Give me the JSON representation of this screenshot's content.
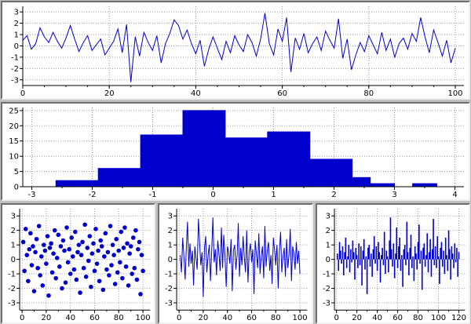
{
  "window": {
    "background": "#c0c0c0",
    "panel_background": "#ffffff",
    "accent": "#0000cc",
    "grid_color": "#9a9a9a"
  },
  "chart_data": [
    {
      "id": "timeseries",
      "type": "line",
      "title": "",
      "xlabel": "",
      "ylabel": "",
      "color": "#0000cc",
      "grid_color": "#9a9a9a",
      "grid": true,
      "xlim": [
        0,
        102
      ],
      "ylim": [
        -3.5,
        3.5
      ],
      "xticks": [
        0,
        20,
        40,
        60,
        80,
        100
      ],
      "yticks": [
        3,
        2,
        1,
        0,
        -1,
        -2,
        -3
      ],
      "xminor": 5,
      "margins": {
        "l": 26,
        "r": 6,
        "t": 5,
        "b": 16
      },
      "x_start": 0,
      "x_step": 1,
      "y": [
        0.5,
        0.9,
        -0.3,
        0.2,
        1.6,
        0.8,
        0.3,
        1.2,
        0.4,
        -0.2,
        0.7,
        1.8,
        0.6,
        -0.5,
        0.3,
        0.9,
        -0.4,
        0.1,
        0.6,
        -0.8,
        -0.2,
        0.4,
        1.5,
        -0.6,
        1.9,
        -3.2,
        0.8,
        -0.9,
        1.2,
        0.3,
        -0.4,
        0.9,
        -1.5,
        0.2,
        1.1,
        2.3,
        1.8,
        0.6,
        1.4,
        0.2,
        -0.7,
        0.5,
        -1.8,
        -0.3,
        0.8,
        -0.2,
        -1.2,
        0.4,
        -0.6,
        0.9,
        0.1,
        -0.5,
        1.0,
        0.3,
        -0.9,
        0.6,
        2.9,
        0.2,
        -0.8,
        1.5,
        0.4,
        2.5,
        -2.3,
        0.7,
        -0.3,
        1.1,
        -0.6,
        0.2,
        0.8,
        -0.4,
        1.3,
        0.5,
        -0.2,
        2.4,
        -1.1,
        0.6,
        -2.1,
        -0.8,
        0.3,
        -0.5,
        0.9,
        0.1,
        -0.7,
        1.2,
        -0.4,
        0.6,
        -1.0,
        0.2,
        0.7,
        -0.3,
        1.1,
        0.4,
        2.5,
        0.8,
        -0.6,
        1.4,
        0.3,
        -0.9,
        0.5,
        -1.5,
        -0.2
      ]
    },
    {
      "id": "histogram",
      "type": "histogram",
      "title": "",
      "xlabel": "",
      "ylabel": "",
      "color": "#0000cc",
      "grid_color": "#9a9a9a",
      "grid": true,
      "xlim": [
        -3.15,
        4.15
      ],
      "ylim": [
        0,
        26
      ],
      "xticks": [
        -3,
        -2,
        -1,
        0,
        1,
        2,
        3,
        4
      ],
      "yticks": [
        0,
        5,
        10,
        15,
        20,
        25
      ],
      "xminor": 0.5,
      "margins": {
        "l": 26,
        "r": 6,
        "t": 5,
        "b": 16
      },
      "bars": [
        {
          "x0": -2.6,
          "x1": -1.9,
          "h": 2
        },
        {
          "x0": -1.9,
          "x1": -1.2,
          "h": 6
        },
        {
          "x0": -1.2,
          "x1": -0.5,
          "h": 17
        },
        {
          "x0": -0.5,
          "x1": 0.2,
          "h": 25
        },
        {
          "x0": 0.2,
          "x1": 0.9,
          "h": 16
        },
        {
          "x0": 0.9,
          "x1": 1.6,
          "h": 18
        },
        {
          "x0": 1.6,
          "x1": 2.3,
          "h": 9
        },
        {
          "x0": 2.3,
          "x1": 2.6,
          "h": 3
        },
        {
          "x0": 2.6,
          "x1": 3.0,
          "h": 1
        },
        {
          "x0": 3.3,
          "x1": 3.7,
          "h": 1
        }
      ]
    },
    {
      "id": "scatter",
      "type": "scatter",
      "title": "",
      "xlabel": "",
      "ylabel": "",
      "color": "#0000cc",
      "grid_color": "#9a9a9a",
      "grid": true,
      "xlim": [
        -2,
        106
      ],
      "ylim": [
        -3.5,
        3.5
      ],
      "xticks": [
        0,
        20,
        40,
        60,
        80,
        100
      ],
      "yticks": [
        3,
        2,
        1,
        0,
        -1,
        -2,
        -3
      ],
      "xminor": 10,
      "margins": {
        "l": 22,
        "r": 5,
        "t": 5,
        "b": 16
      },
      "x_start": 1,
      "x_step": 1,
      "y": [
        1.2,
        -0.8,
        2.1,
        0.3,
        -1.5,
        0.7,
        1.8,
        -0.4,
        0.9,
        -2.2,
        0.5,
        1.4,
        -0.6,
        2.3,
        -1.1,
        0.2,
        -1.8,
        1.0,
        0.6,
        -0.3,
        1.6,
        -2.5,
        0.8,
        1.1,
        -0.9,
        0.4,
        2.0,
        -1.3,
        0.1,
        1.7,
        -0.5,
        0.9,
        -2.0,
        1.3,
        0.6,
        -1.6,
        2.2,
        -0.2,
        0.7,
        -1.0,
        1.5,
        0.2,
        -0.7,
        1.9,
        -1.4,
        0.5,
        1.0,
        -2.3,
        0.3,
        1.2,
        -0.6,
        2.4,
        -1.2,
        0.8,
        -0.1,
        1.6,
        -1.9,
        0.4,
        1.1,
        -0.8,
        2.1,
        -0.3,
        0.6,
        -1.5,
        1.3,
        0.9,
        -2.1,
        0.2,
        1.8,
        -0.7,
        0.5,
        -1.1,
        2.3,
        -0.4,
        1.0,
        0.3,
        -1.7,
        1.4,
        -0.9,
        0.6,
        -0.2,
        1.9,
        -1.3,
        0.8,
        2.2,
        -0.5,
        1.1,
        -1.8,
        0.4,
        0.9,
        -1.0,
        1.5,
        -0.6,
        2.0,
        -1.4,
        0.7,
        1.2,
        -2.4,
        0.3,
        -0.8
      ]
    },
    {
      "id": "noise-line",
      "type": "line",
      "title": "",
      "xlabel": "",
      "ylabel": "",
      "color": "#0000cc",
      "grid_color": "#9a9a9a",
      "grid": true,
      "xlim": [
        -2,
        106
      ],
      "ylim": [
        -3.5,
        3.5
      ],
      "xticks": [
        0,
        20,
        40,
        60,
        80,
        100
      ],
      "yticks": [
        3,
        2,
        1,
        0,
        -1,
        -2,
        -3
      ],
      "xminor": 10,
      "margins": {
        "l": 22,
        "r": 5,
        "t": 5,
        "b": 16
      },
      "x_start": 1,
      "x_step": 1,
      "y": [
        0.3,
        -0.9,
        1.5,
        0.2,
        -1.4,
        0.8,
        2.6,
        -0.5,
        1.1,
        -0.3,
        0.6,
        -1.8,
        0.9,
        0.1,
        -0.7,
        2.8,
        1.2,
        -0.4,
        0.5,
        -2.6,
        0.8,
        1.6,
        -0.9,
        0.3,
        1.0,
        -1.5,
        0.6,
        2.9,
        -0.2,
        0.7,
        -1.1,
        1.3,
        0.4,
        -0.8,
        2.2,
        -0.6,
        1.7,
        0.2,
        -1.9,
        0.9,
        0.5,
        -0.3,
        1.4,
        -2.2,
        0.6,
        1.0,
        -0.7,
        0.3,
        2.5,
        -1.2,
        0.8,
        -0.4,
        1.6,
        0.1,
        -0.9,
        2.0,
        -1.6,
        0.5,
        1.1,
        -0.2,
        0.7,
        -2.4,
        1.3,
        0.4,
        -0.6,
        1.8,
        -1.0,
        0.2,
        0.9,
        -1.3,
        2.3,
        -0.5,
        0.6,
        1.2,
        -0.8,
        0.3,
        -1.7,
        1.5,
        0.7,
        -0.4,
        1.0,
        -2.0,
        0.5,
        1.9,
        -0.9,
        0.2,
        0.8,
        -1.2,
        1.4,
        -0.6,
        0.3,
        2.1,
        -1.5,
        0.9,
        0.4,
        -0.7,
        1.2,
        -0.3,
        0.6,
        -1.0
      ]
    },
    {
      "id": "stem",
      "type": "stem",
      "title": "",
      "xlabel": "",
      "ylabel": "",
      "color": "#0000cc",
      "grid_color": "#9a9a9a",
      "grid": true,
      "xlim": [
        -2,
        126
      ],
      "ylim": [
        -3.5,
        3.5
      ],
      "xticks": [
        0,
        20,
        40,
        60,
        80,
        100,
        120
      ],
      "yticks": [
        3,
        2,
        1,
        0,
        -1,
        -2,
        -3
      ],
      "xminor": 10,
      "margins": {
        "l": 22,
        "r": 5,
        "t": 5,
        "b": 16
      },
      "x_start": 1,
      "x_step": 1,
      "y": [
        0.4,
        -0.8,
        1.2,
        0.6,
        -0.3,
        0.9,
        -1.1,
        0.5,
        1.5,
        -0.6,
        0.2,
        1.0,
        -0.9,
        0.7,
        -0.2,
        1.3,
        0.5,
        -1.4,
        0.8,
        0.3,
        -0.6,
        1.1,
        -0.4,
        0.9,
        -1.8,
        0.6,
        1.4,
        -0.7,
        0.2,
        -2.4,
        0.8,
        1.0,
        -0.5,
        0.4,
        -1.2,
        0.7,
        1.6,
        -0.3,
        0.9,
        -0.8,
        1.2,
        0.5,
        -1.6,
        0.3,
        0.8,
        -0.4,
        1.9,
        -1.0,
        0.6,
        0.2,
        -0.9,
        1.3,
        2.9,
        0.7,
        -0.5,
        1.1,
        -1.3,
        0.4,
        2.2,
        -0.6,
        0.9,
        1.5,
        -0.8,
        0.3,
        -1.9,
        0.7,
        1.0,
        -0.4,
        2.6,
        0.5,
        -1.1,
        0.8,
        1.7,
        -0.6,
        0.2,
        -1.5,
        0.9,
        0.4,
        -0.7,
        1.2,
        2.4,
        -0.3,
        0.6,
        -2.1,
        0.8,
        1.1,
        -0.5,
        0.3,
        1.8,
        -0.9,
        0.5,
        1.4,
        -1.2,
        0.7,
        2.8,
        -0.4,
        0.9,
        -0.6,
        1.6,
        0.2,
        -1.7,
        0.8,
        1.2,
        -0.5,
        0.6,
        -1.0,
        1.5,
        0.3,
        -0.8,
        2.0,
        0.7,
        -1.4,
        0.9,
        0.4,
        -0.6,
        1.1,
        -0.2,
        0.8,
        -1.2,
        0.5
      ]
    }
  ]
}
